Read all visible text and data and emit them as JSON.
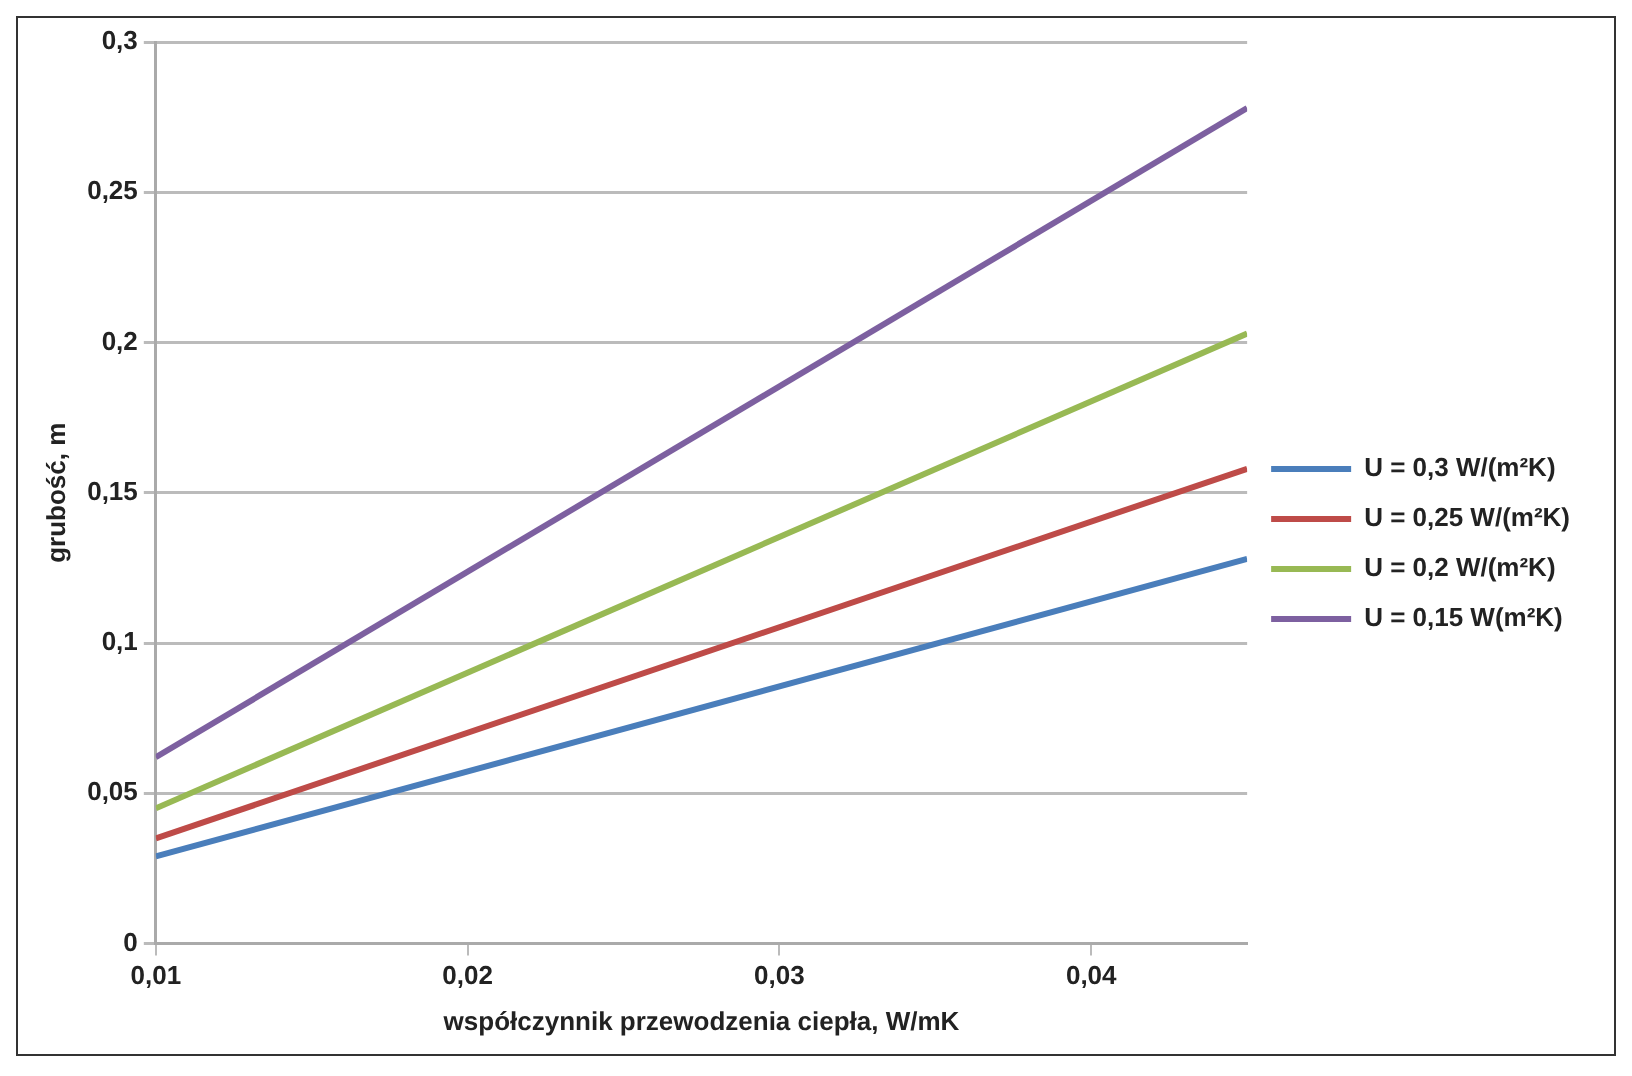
{
  "chart_data": {
    "type": "line",
    "xlabel": "współczynnik przewodzenia ciepła, W/mK",
    "ylabel": "grubość, m",
    "x": [
      0.01,
      0.045
    ],
    "series": [
      {
        "name": "U = 0,3 W/(m²K)",
        "color": "#4a7ebb",
        "values": [
          0.029,
          0.128
        ]
      },
      {
        "name": "U = 0,25 W/(m²K)",
        "color": "#be4b48",
        "values": [
          0.035,
          0.158
        ]
      },
      {
        "name": "U = 0,2 W/(m²K)",
        "color": "#98b954",
        "values": [
          0.045,
          0.203
        ]
      },
      {
        "name": "U = 0,15 W(m²K)",
        "color": "#7d60a0",
        "values": [
          0.062,
          0.278
        ]
      }
    ],
    "xlim": [
      0.01,
      0.045
    ],
    "xticks": [
      {
        "value": 0.01,
        "label": "0,01"
      },
      {
        "value": 0.02,
        "label": "0,02"
      },
      {
        "value": 0.03,
        "label": "0,03"
      },
      {
        "value": 0.04,
        "label": "0,04"
      }
    ],
    "ylim": [
      0,
      0.3
    ],
    "yticks": [
      0,
      {
        "value": 0.05,
        "label": "0,05"
      },
      {
        "value": 0.1,
        "label": "0,1"
      },
      {
        "value": 0.15,
        "label": "0,15"
      },
      {
        "value": 0.2,
        "label": "0,2"
      },
      {
        "value": 0.25,
        "label": "0,25"
      },
      {
        "value": 0.3,
        "label": "0,3"
      }
    ],
    "grid": "y",
    "legend": "right",
    "marker": "none",
    "line_style": "solid"
  }
}
